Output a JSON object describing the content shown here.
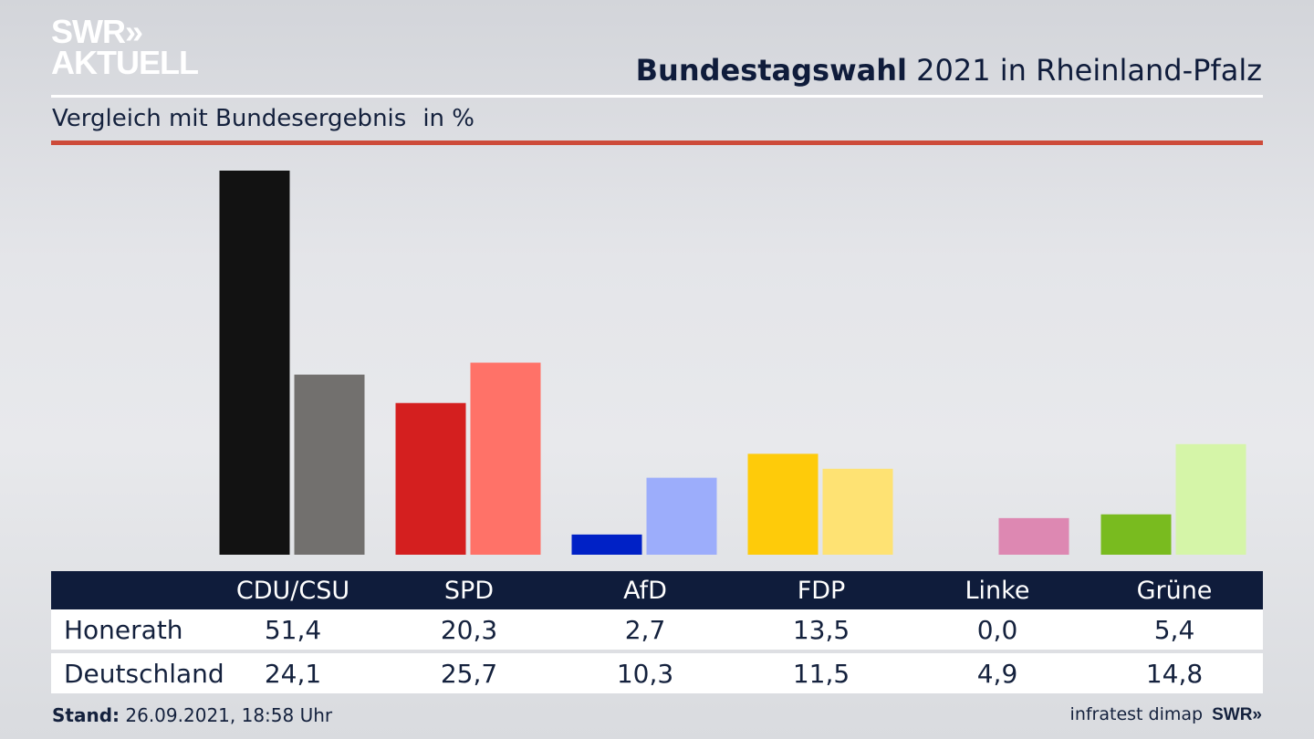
{
  "logo": {
    "line1": "SWR»",
    "line2": "AKTUELL"
  },
  "header": {
    "title_bold": "Bundestagswahl",
    "title_rest": "2021 in Rheinland-Pfalz"
  },
  "subtitle": {
    "text": "Vergleich mit Bundesergebnis",
    "unit": "in %"
  },
  "colors": {
    "accent_rule": "#cd4b3a",
    "table_header": "#0f1c3b"
  },
  "chart_data": {
    "type": "bar",
    "title": "Bundestagswahl 2021 in Rheinland-Pfalz",
    "subtitle": "Vergleich mit Bundesergebnis in %",
    "categories": [
      "CDU/CSU",
      "SPD",
      "AfD",
      "FDP",
      "Linke",
      "Grüne"
    ],
    "series": [
      {
        "name": "Honerath",
        "values": [
          51.4,
          20.3,
          2.7,
          13.5,
          0.0,
          5.4
        ],
        "colors": [
          "#121212",
          "#d41f1f",
          "#0021c6",
          "#fecb0a",
          "#d985b3",
          "#79bb1f"
        ]
      },
      {
        "name": "Deutschland",
        "values": [
          24.1,
          25.7,
          10.3,
          11.5,
          4.9,
          14.8
        ],
        "colors": [
          "#72706e",
          "#ff7268",
          "#9cadfb",
          "#fee273",
          "#dd88b2",
          "#d5f5a8"
        ]
      }
    ],
    "ylim": [
      0,
      51.4
    ],
    "grid": false,
    "xlabel": "",
    "ylabel": ""
  },
  "table": {
    "headers": [
      "CDU/CSU",
      "SPD",
      "AfD",
      "FDP",
      "Linke",
      "Grüne"
    ],
    "rows": [
      {
        "label": "Honerath",
        "values": [
          "51,4",
          "20,3",
          "2,7",
          "13,5",
          "0,0",
          "5,4"
        ]
      },
      {
        "label": "Deutschland",
        "values": [
          "24,1",
          "25,7",
          "10,3",
          "11,5",
          "4,9",
          "14,8"
        ]
      }
    ]
  },
  "footer": {
    "stand_label": "Stand:",
    "stand_value": "26.09.2021, 18:58 Uhr",
    "source": "infratest dimap",
    "brand": "SWR»"
  }
}
